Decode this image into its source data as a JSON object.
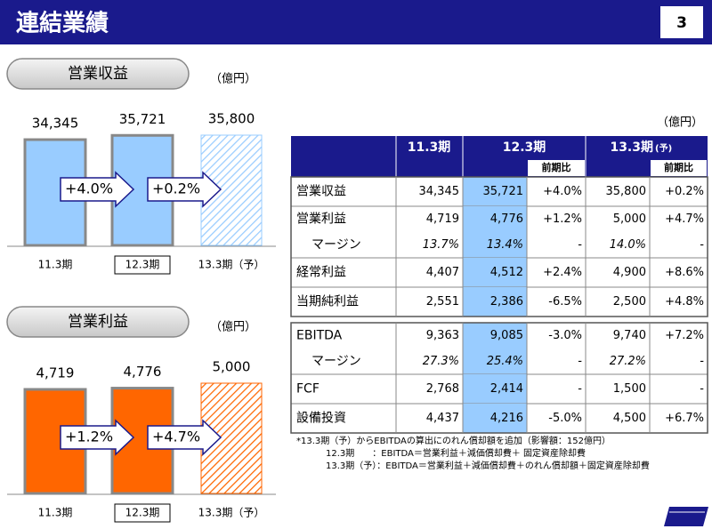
{
  "header": {
    "title": "連結業績",
    "page": "3"
  },
  "chart_data": [
    {
      "type": "bar",
      "title": "営業収益",
      "unit": "（億円）",
      "categories": [
        "11.3期",
        "12.3期",
        "13.3期（予）"
      ],
      "values": [
        34345,
        35721,
        35800
      ],
      "value_labels": [
        "34,345",
        "35,721",
        "35,800"
      ],
      "changes": [
        "+4.0%",
        "+0.2%"
      ],
      "color": "#99ccff",
      "hatched": [
        false,
        false,
        true
      ]
    },
    {
      "type": "bar",
      "title": "営業利益",
      "unit": "（億円）",
      "categories": [
        "11.3期",
        "12.3期",
        "13.3期（予）"
      ],
      "values": [
        4719,
        4776,
        5000
      ],
      "value_labels": [
        "4,719",
        "4,776",
        "5,000"
      ],
      "changes": [
        "+1.2%",
        "+4.7%"
      ],
      "color": "#ff6600",
      "hatched": [
        false,
        false,
        true
      ]
    }
  ],
  "table": {
    "unit": "（億円）",
    "headers": [
      "11.3期",
      "12.3期",
      "13.3期"
    ],
    "forecast_mark": "(予)",
    "sub_headers": [
      "前期比",
      "前期比"
    ],
    "sections": [
      [
        [
          [
            "営業収益",
            "34,345",
            "35,721",
            "+4.0%",
            "35,800",
            "+0.2%"
          ]
        ],
        [
          [
            "営業利益",
            "4,719",
            "4,776",
            "+1.2%",
            "5,000",
            "+4.7%"
          ],
          [
            "マージン",
            "13.7%",
            "13.4%",
            "-",
            "14.0%",
            "-"
          ]
        ],
        [
          [
            "経常利益",
            "4,407",
            "4,512",
            "+2.4%",
            "4,900",
            "+8.6%"
          ]
        ],
        [
          [
            "当期純利益",
            "2,551",
            "2,386",
            "-6.5%",
            "2,500",
            "+4.8%"
          ]
        ]
      ],
      [
        [
          [
            "EBITDA",
            "9,363",
            "9,085",
            "-3.0%",
            "9,740",
            "+7.2%"
          ],
          [
            "マージン",
            "27.3%",
            "25.4%",
            "-",
            "27.2%",
            "-"
          ]
        ],
        [
          [
            "FCF",
            "2,768",
            "2,414",
            "-",
            "1,500",
            "-"
          ]
        ],
        [
          [
            "設備投資",
            "4,437",
            "4,216",
            "-5.0%",
            "4,500",
            "+6.7%"
          ]
        ]
      ]
    ]
  },
  "notes": [
    "*13.3期（予）からEBITDAの算出にのれん償却額を追加（影響額：152億円）",
    "12.3期　　：EBITDA＝営業利益＋減価償却費＋ 固定資産除却費",
    "13.3期（予）：EBITDA＝営業利益＋減価償却費＋のれん償却額＋固定資産除却費"
  ]
}
